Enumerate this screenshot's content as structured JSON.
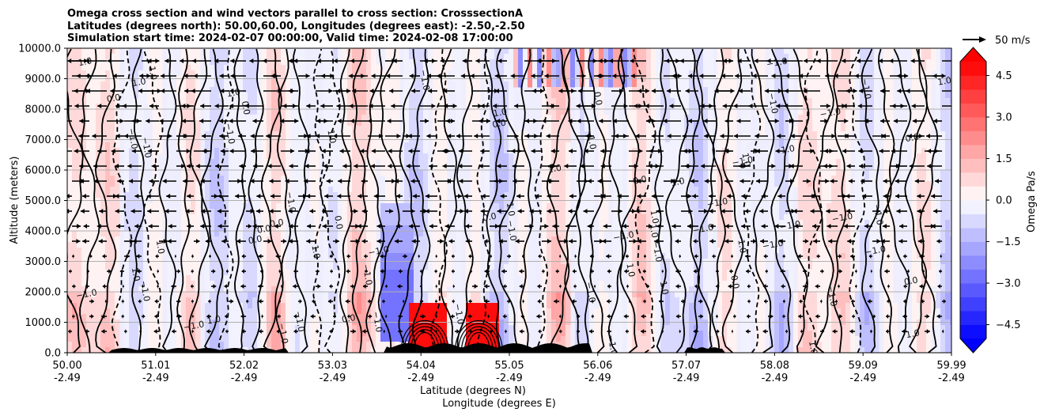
{
  "chart_data": {
    "type": "heatmap",
    "title_lines": [
      "Omega cross section and wind vectors parallel to cross section: CrosssectionA",
      "Latitudes (degrees north): 50.00,60.00, Longitudes (degrees east): -2.50,-2.50",
      "Simulation start time: 2024-02-07 00:00:00, Valid time: 2024-02-08 17:00:00"
    ],
    "xlabel_lat": "Latitude (degrees N)",
    "xlabel_lon": "Longitude (degrees E)",
    "ylabel": "Altitude (meters)",
    "x_ticks": [
      {
        "lat": "50.00",
        "lon": "-2.49"
      },
      {
        "lat": "51.01",
        "lon": "-2.49"
      },
      {
        "lat": "52.02",
        "lon": "-2.49"
      },
      {
        "lat": "53.03",
        "lon": "-2.49"
      },
      {
        "lat": "54.04",
        "lon": "-2.49"
      },
      {
        "lat": "55.05",
        "lon": "-2.49"
      },
      {
        "lat": "56.06",
        "lon": "-2.49"
      },
      {
        "lat": "57.07",
        "lon": "-2.49"
      },
      {
        "lat": "58.08",
        "lon": "-2.49"
      },
      {
        "lat": "59.09",
        "lon": "-2.49"
      },
      {
        "lat": "59.99",
        "lon": "-2.49"
      }
    ],
    "y_ticks": [
      "0.0",
      "1000.0",
      "2000.0",
      "3000.0",
      "4000.0",
      "5000.0",
      "6000.0",
      "7000.0",
      "8000.0",
      "9000.0",
      "10000.0"
    ],
    "ylim": [
      0,
      10000
    ],
    "xlim": [
      50.0,
      59.99
    ],
    "grid": true,
    "colorbar": {
      "label": "Omega Pa/s",
      "ticks": [
        "4.5",
        "3.0",
        "1.5",
        "0.0",
        "−1.5",
        "−3.0",
        "−4.5"
      ],
      "range": [
        -5,
        5
      ],
      "levels": [
        -5.0,
        -4.5,
        -4.0,
        -3.5,
        -3.0,
        -2.5,
        -2.0,
        -1.5,
        -1.0,
        -0.5,
        0.0,
        0.5,
        1.0,
        1.5,
        2.0,
        2.5,
        3.0,
        3.5,
        4.0,
        4.5,
        5.0
      ],
      "extend": "both",
      "colormap": "bwr"
    },
    "quiver_key": {
      "label": "50 m/s",
      "value": 50
    },
    "contour_labels": [
      "0.0",
      "1.0",
      "−1.0",
      "0.01"
    ],
    "notable_features": [
      {
        "lat": 54.04,
        "omega": 5.0,
        "altitude_top": 1800
      },
      {
        "lat": 54.65,
        "omega": 5.0,
        "altitude_top": 1800
      },
      {
        "lat": 53.7,
        "omega": -2.5,
        "altitude_top": 4800
      }
    ],
    "colors": {
      "strong_positive": "#ff0000",
      "strong_negative": "#0000ff",
      "neutral": "#ffffff",
      "terrain": "#000000"
    }
  }
}
